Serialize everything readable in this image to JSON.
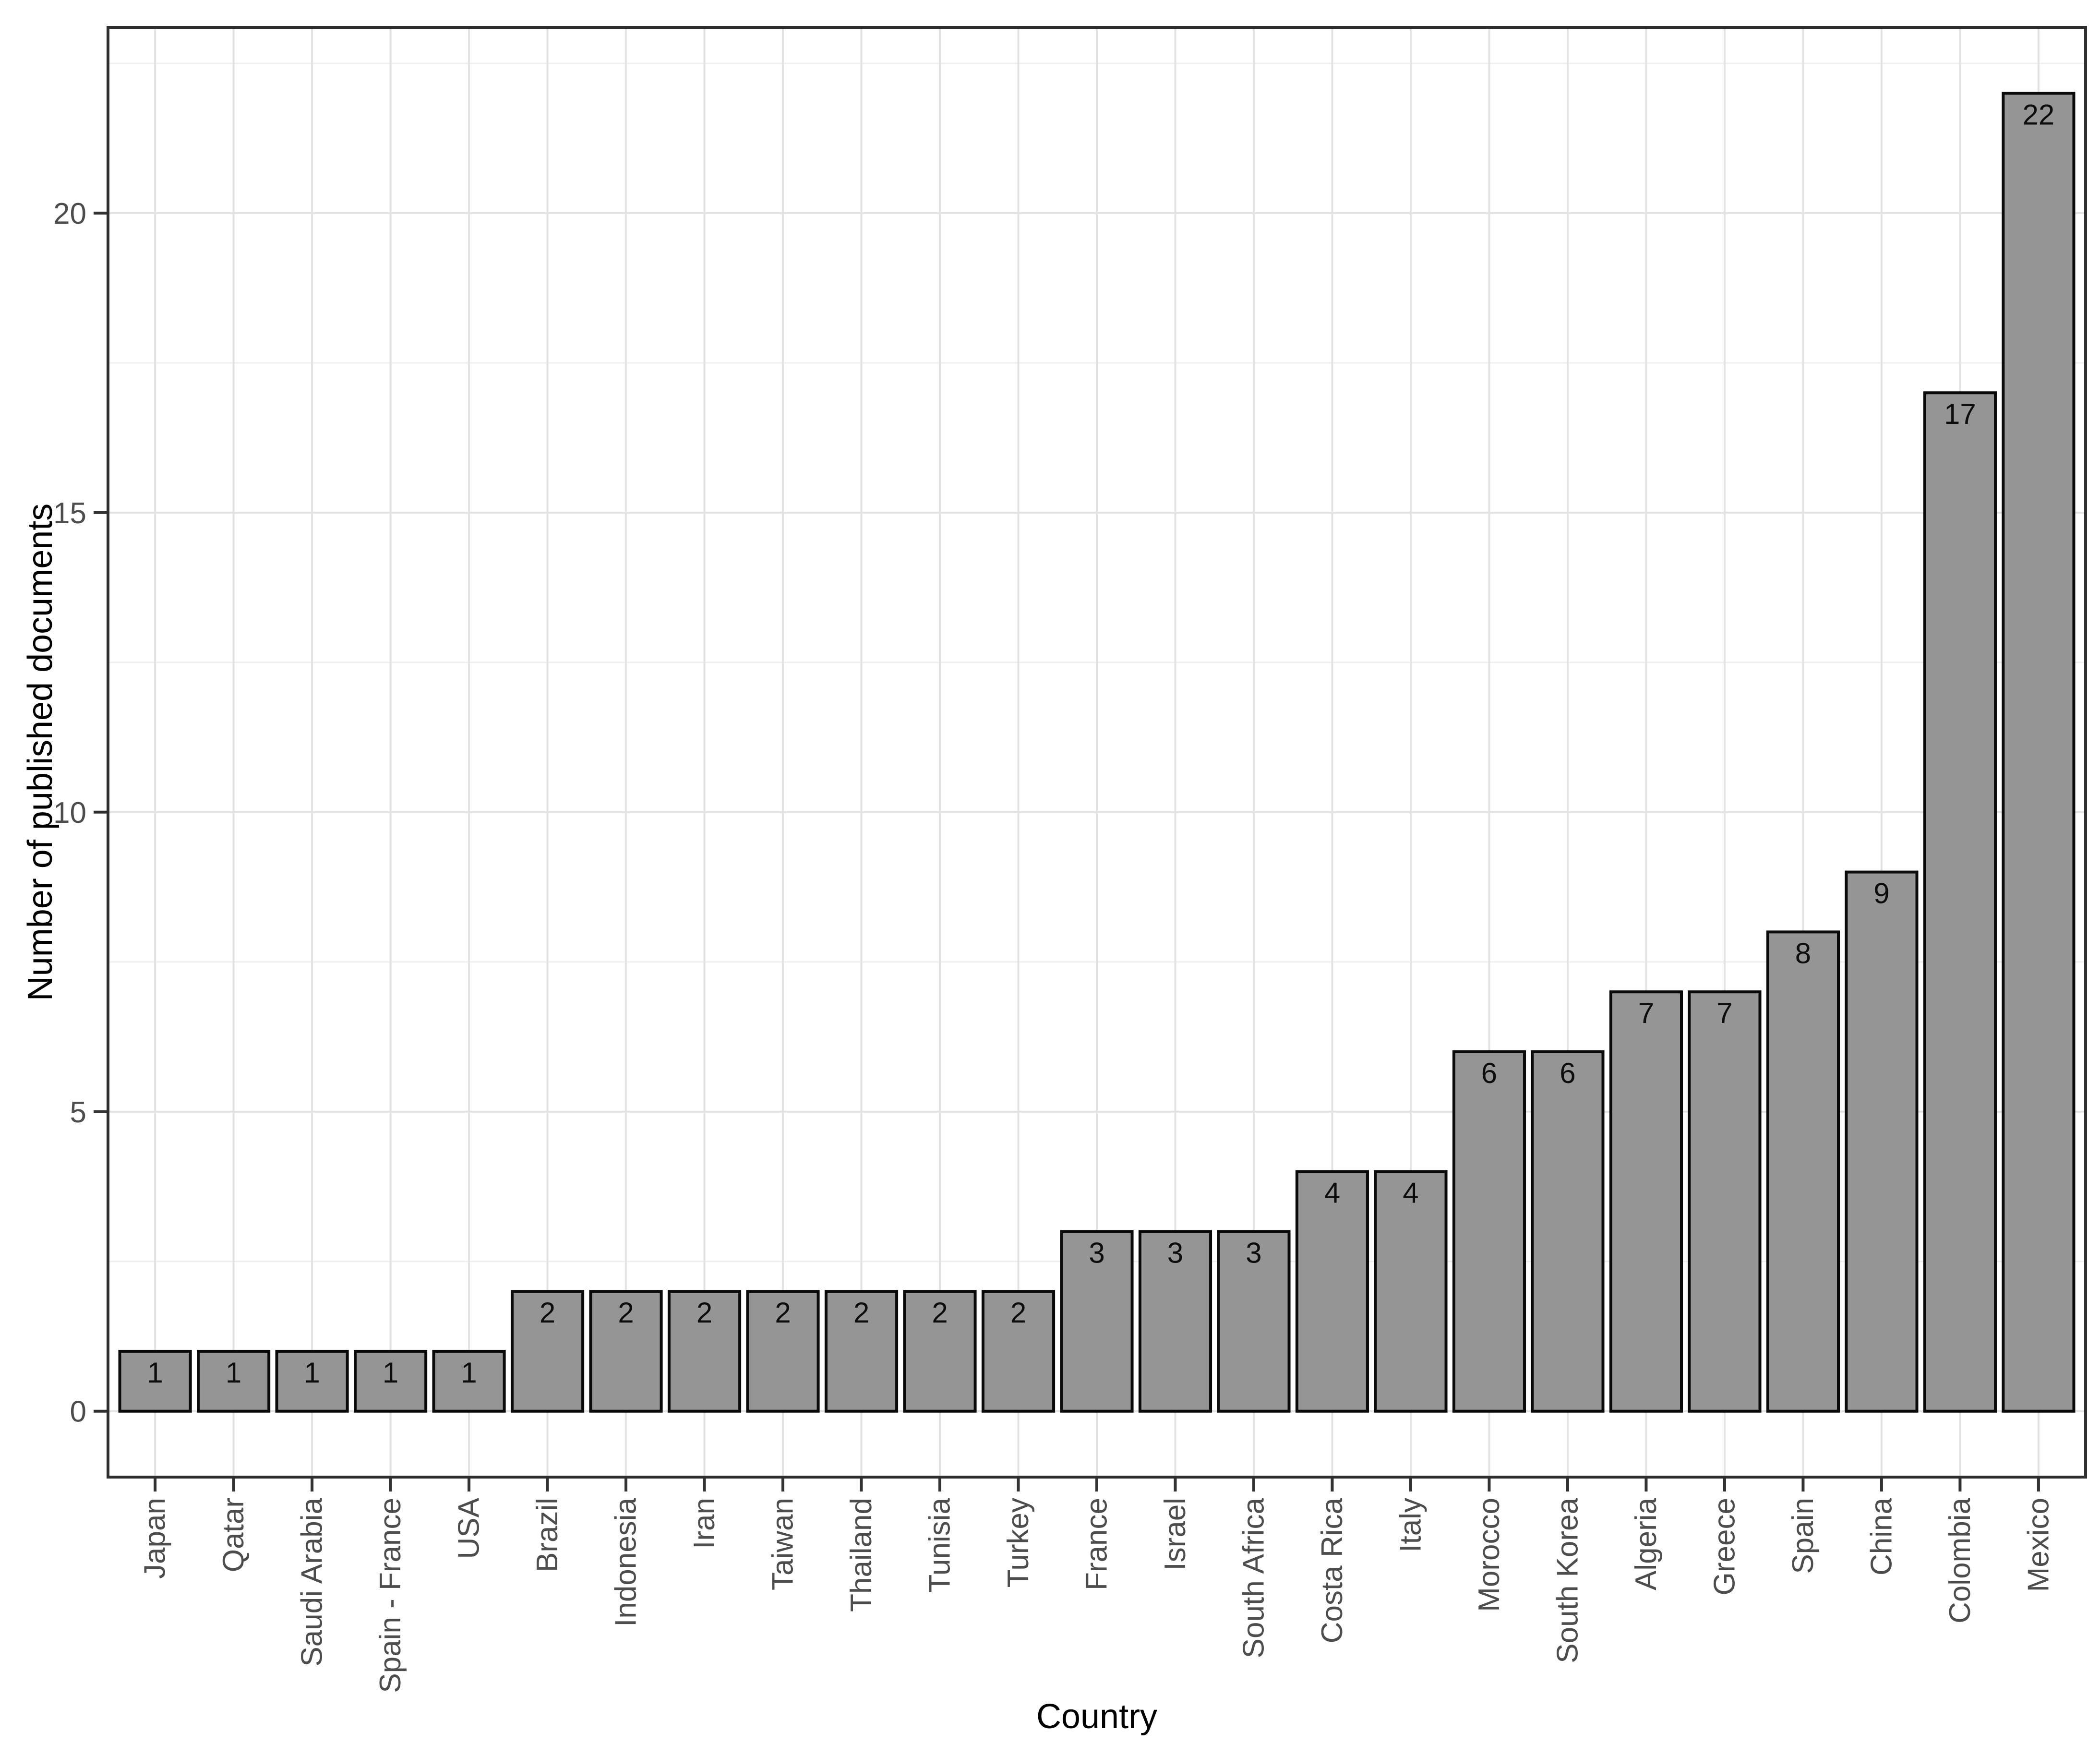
{
  "figure": {
    "type": "bar-chart",
    "background": "#ffffff"
  },
  "chart_data": {
    "type": "bar",
    "title": "",
    "xlabel": "Country",
    "ylabel": "Number of published documents",
    "categories": [
      "Japan",
      "Qatar",
      "Saudi Arabia",
      "Spain - France",
      "USA",
      "Brazil",
      "Indonesia",
      "Iran",
      "Taiwan",
      "Thailand",
      "Tunisia",
      "Turkey",
      "France",
      "Israel",
      "South Africa",
      "Costa Rica",
      "Italy",
      "Morocco",
      "South Korea",
      "Algeria",
      "Greece",
      "Spain",
      "China",
      "Colombia",
      "Mexico"
    ],
    "values": [
      1,
      1,
      1,
      1,
      1,
      2,
      2,
      2,
      2,
      2,
      2,
      2,
      3,
      3,
      3,
      4,
      4,
      6,
      6,
      7,
      7,
      8,
      9,
      17,
      22
    ],
    "bar_labels_shown": true,
    "yticks": [
      0,
      5,
      10,
      15,
      20
    ],
    "yminor": [
      2.5,
      7.5,
      12.5,
      17.5,
      22.5
    ],
    "ylim": [
      -1.1,
      23.1
    ],
    "grid": "horizontal major+minor, vertical major at bar centers",
    "legend_position": "none",
    "colors": {
      "bar_fill": "#959595",
      "bar_stroke": "#0a0a0a",
      "grid_major": "#e3e3e3",
      "grid_minor": "#efefef",
      "panel_border": "#2e2e2e",
      "tick_mark": "#333333",
      "tick_text": "#4d4d4d",
      "title_text": "#000000",
      "value_text": "#0d0d0d",
      "panel_background": "#ffffff"
    }
  }
}
